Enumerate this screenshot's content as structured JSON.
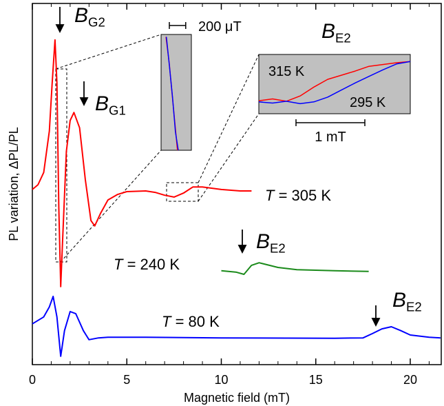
{
  "chart_data": {
    "type": "line",
    "xlabel": "Magnetic field (mT)",
    "ylabel": "PL variation, ΔPL/PL",
    "xlim": [
      0,
      21.64
    ],
    "xticks": [
      0,
      5,
      10,
      15,
      20
    ],
    "xminorticks": [
      1,
      2,
      3,
      4,
      6,
      7,
      8,
      9,
      11,
      12,
      13,
      14,
      16,
      17,
      18,
      19,
      21
    ],
    "ylim": [
      0,
      100
    ],
    "series": [
      {
        "name": "T = 305 K",
        "color": "#ff0000",
        "x": [
          0,
          0.3,
          0.6,
          0.9,
          1.05,
          1.2,
          1.3,
          1.4,
          1.5,
          1.6,
          1.8,
          2.0,
          2.2,
          2.5,
          2.8,
          3.1,
          3.3,
          3.6,
          4.0,
          4.5,
          5.0,
          6.0,
          6.5,
          7.0,
          7.5,
          8.0,
          8.5,
          9.0,
          10.0,
          11.0,
          11.6
        ],
        "values": [
          48.5,
          49.8,
          53.2,
          64.7,
          78,
          89.9,
          78,
          43.7,
          21.6,
          34.2,
          59,
          67.6,
          69.8,
          65.6,
          51.3,
          39.9,
          38.4,
          41.8,
          45.6,
          47.1,
          47.9,
          48.1,
          47.7,
          46.9,
          46.4,
          47.5,
          49.2,
          49.2,
          48.5,
          48.1,
          48.1
        ]
      },
      {
        "name": "T = 240 K",
        "color": "#1a8a1a",
        "x": [
          10,
          10.8,
          11.2,
          11.6,
          12.0,
          13,
          14,
          16,
          17.8
        ],
        "values": [
          26.0,
          25.6,
          25.0,
          27.5,
          28.2,
          26.9,
          26.3,
          26.0,
          25.8
        ]
      },
      {
        "name": "T = 80 K",
        "color": "#0000ff",
        "x": [
          0,
          0.6,
          0.9,
          1.1,
          1.3,
          1.5,
          1.7,
          2.0,
          2.3,
          2.7,
          3.0,
          3.5,
          4,
          6,
          10,
          16,
          17.5,
          18.0,
          18.5,
          19.0,
          19.5,
          20,
          21,
          21.6
        ],
        "values": [
          11.3,
          13.2,
          16.0,
          18.9,
          13.2,
          2.3,
          9.4,
          14.7,
          14.1,
          9.4,
          6.9,
          7.4,
          7.6,
          7.6,
          7.4,
          7.3,
          7.4,
          8.6,
          9.9,
          10.5,
          9.4,
          8.2,
          7.6,
          7.4
        ]
      }
    ],
    "annotations": [
      {
        "text": "B",
        "sub": "G2"
      },
      {
        "text": "B",
        "sub": "G1"
      },
      {
        "text": "B",
        "sub": "E2"
      },
      {
        "text": "B",
        "sub": "E2"
      }
    ],
    "insets": [
      {
        "type": "line",
        "xlim": [
          0,
          0.37
        ],
        "ylim": [
          0,
          100
        ],
        "scalebar": {
          "label": "200 μT",
          "length": 0.2
        },
        "series": [
          {
            "color": "#ff0000",
            "x": [
              0.06,
              0.1,
              0.14,
              0.18,
              0.2
            ],
            "values": [
              98,
              75,
              45,
              15,
              0
            ]
          },
          {
            "color": "#0000ff",
            "x": [
              0.065,
              0.1,
              0.14,
              0.175,
              0.21
            ],
            "values": [
              98,
              74,
              46,
              16,
              0
            ]
          }
        ]
      },
      {
        "type": "line",
        "xlim": [
          0,
          2.2
        ],
        "ylim": [
          0,
          100
        ],
        "title": {
          "text": "B",
          "sub": "E2"
        },
        "scalebar": {
          "label": "1 mT",
          "length": 1
        },
        "series": [
          {
            "name": "315 K",
            "color": "#ff0000",
            "x": [
              0,
              0.2,
              0.4,
              0.6,
              0.8,
              1.0,
              1.2,
              1.4,
              1.6,
              1.8,
              2.0,
              2.2
            ],
            "values": [
              22,
              25,
              21,
              30,
              45,
              58,
              65,
              72,
              80,
              83,
              86,
              88
            ]
          },
          {
            "name": "295 K",
            "color": "#0000ff",
            "x": [
              0,
              0.2,
              0.4,
              0.6,
              0.8,
              1.0,
              1.2,
              1.4,
              1.6,
              1.8,
              2.0,
              2.2
            ],
            "values": [
              20,
              18,
              21,
              17,
              20,
              28,
              40,
              52,
              63,
              74,
              84,
              88
            ]
          }
        ]
      }
    ]
  }
}
